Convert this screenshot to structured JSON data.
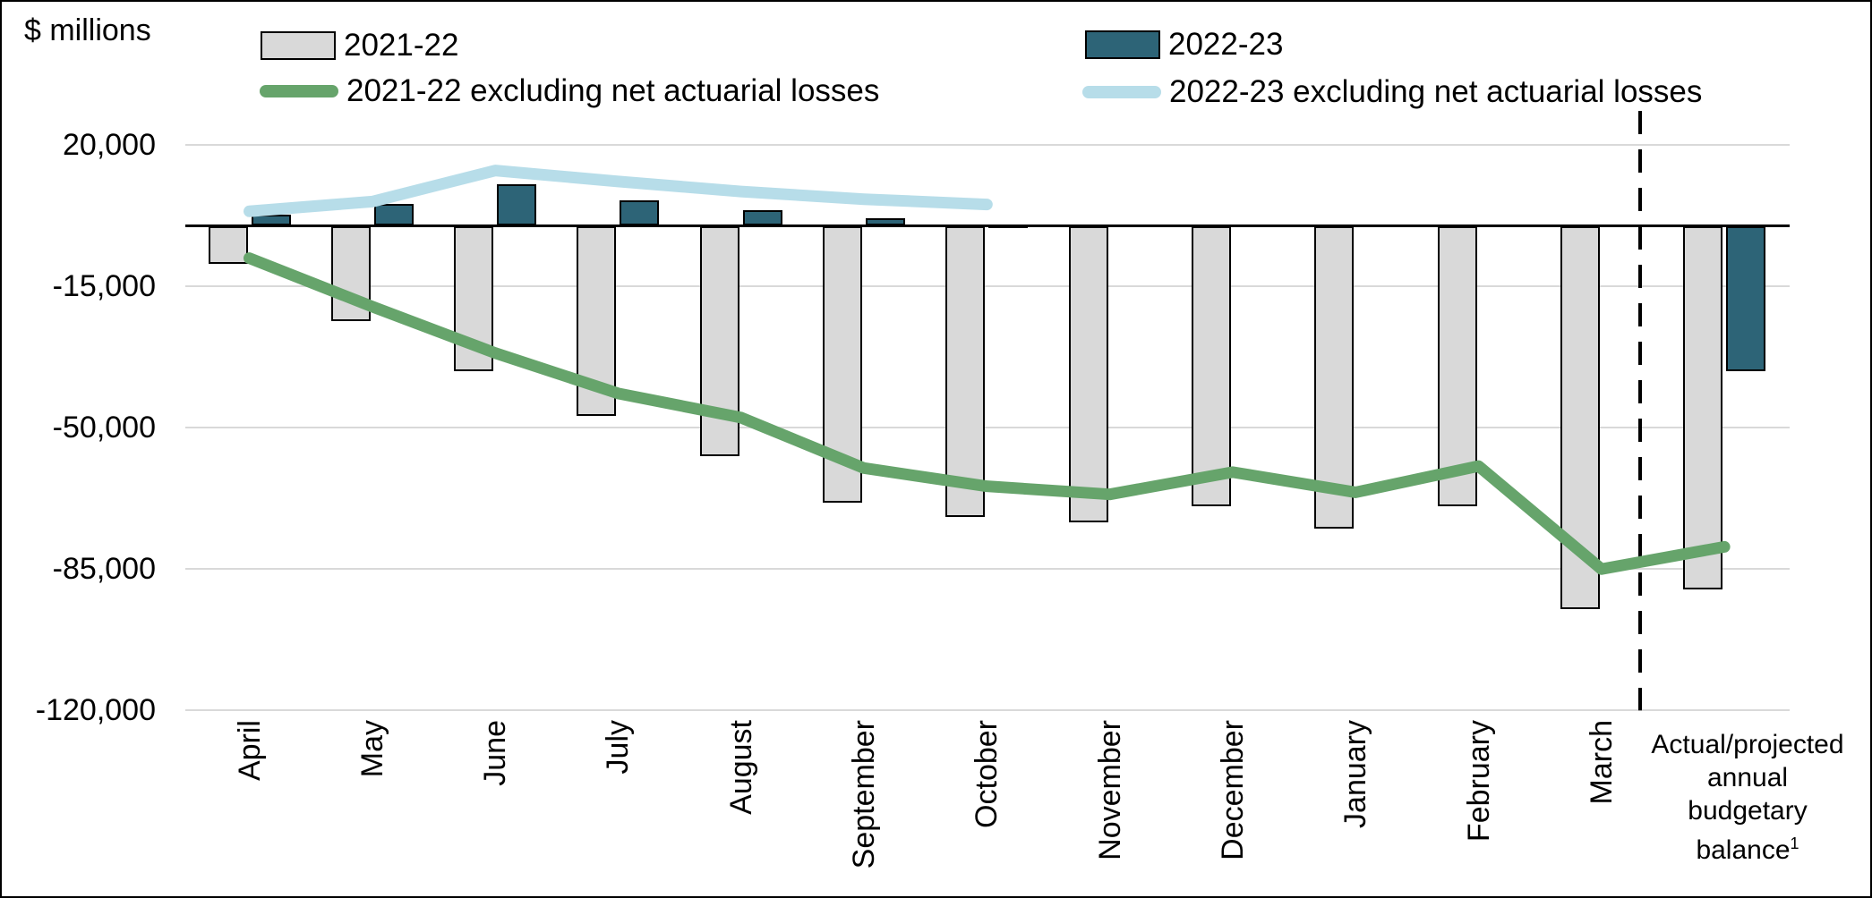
{
  "unit_label": "$ millions",
  "legend": {
    "bar_2021_22": "2021-22",
    "bar_2022_23": "2022-23",
    "line_2021_22": "2021-22 excluding net actuarial losses",
    "line_2022_23": "2022-23 excluding net actuarial losses"
  },
  "colors": {
    "bar_2021_22_fill": "#d9d9d9",
    "bar_2022_23_fill": "#2d6477",
    "line_2021_22": "#66a46b",
    "line_2022_23": "#b7dde9",
    "bar_border": "#000000",
    "gridline": "#d9d9d9",
    "zero_line": "#000000",
    "divider": "#000000"
  },
  "y_axis": {
    "ticks": [
      {
        "label": "20,000",
        "value": 20000
      },
      {
        "label": "-15,000",
        "value": -15000
      },
      {
        "label": "-50,000",
        "value": -50000
      },
      {
        "label": "-85,000",
        "value": -85000
      },
      {
        "label": "-120,000",
        "value": -120000
      }
    ]
  },
  "final_category": {
    "lines": [
      "Actual/projected",
      "annual",
      "budgetary",
      "balance"
    ],
    "footnote_marker": "1"
  },
  "chart_data": {
    "type": "bar",
    "title": "",
    "ylabel": "$ millions",
    "ylim": [
      -120000,
      20000
    ],
    "y_ticks": [
      20000,
      -15000,
      -50000,
      -85000,
      -120000
    ],
    "grid": true,
    "legend_position": "top",
    "divider_before_category": "Actual/projected annual budgetary balance¹",
    "categories": [
      "April",
      "May",
      "June",
      "July",
      "August",
      "September",
      "October",
      "November",
      "December",
      "January",
      "February",
      "March",
      "Actual/projected annual budgetary balance¹"
    ],
    "series": [
      {
        "name": "2021-22",
        "type": "bar",
        "color": "#d9d9d9",
        "values": [
          -9500,
          -23500,
          -36000,
          -47000,
          -57000,
          -68500,
          -72000,
          -73500,
          -69500,
          -75000,
          -69500,
          -95000,
          -90000
        ]
      },
      {
        "name": "2022-23",
        "type": "bar",
        "color": "#2d6477",
        "values": [
          2700,
          5400,
          10200,
          6300,
          3900,
          1900,
          300,
          null,
          null,
          null,
          null,
          null,
          -36000
        ]
      },
      {
        "name": "2021-22 excluding net actuarial losses",
        "type": "line",
        "color": "#66a46b",
        "values": [
          -8000,
          -20000,
          -31500,
          -41500,
          -47500,
          -60000,
          -64500,
          -66500,
          -61000,
          -66000,
          -59500,
          -85000,
          -79500
        ]
      },
      {
        "name": "2022-23 excluding net actuarial losses",
        "type": "line",
        "color": "#b7dde9",
        "values": [
          3600,
          6000,
          13700,
          11000,
          8500,
          6600,
          5300,
          null,
          null,
          null,
          null,
          null,
          null
        ]
      }
    ]
  }
}
